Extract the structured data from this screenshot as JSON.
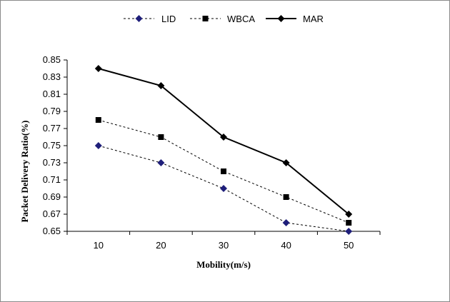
{
  "chart_data": {
    "type": "line",
    "xlabel": "Mobility(m/s)",
    "ylabel": "Packet Delivery Ratio(%)",
    "categories": [
      "10",
      "20",
      "30",
      "40",
      "50"
    ],
    "ylim": [
      0.65,
      0.85
    ],
    "yticks": [
      "0.65",
      "0.67",
      "0.69",
      "0.71",
      "0.73",
      "0.75",
      "0.77",
      "0.79",
      "0.81",
      "0.83",
      "0.85"
    ],
    "grid": false,
    "legend_position": "top",
    "series": [
      {
        "name": "LID",
        "values": [
          0.75,
          0.73,
          0.7,
          0.66,
          0.65
        ],
        "color": "#1f1f7a",
        "marker": "diamond",
        "line": "dashed"
      },
      {
        "name": "WBCA",
        "values": [
          0.78,
          0.76,
          0.72,
          0.69,
          0.66
        ],
        "color": "#000000",
        "marker": "square",
        "line": "dashed"
      },
      {
        "name": "MAR",
        "values": [
          0.84,
          0.82,
          0.76,
          0.73,
          0.67
        ],
        "color": "#000000",
        "marker": "diamond",
        "line": "solid"
      }
    ]
  }
}
